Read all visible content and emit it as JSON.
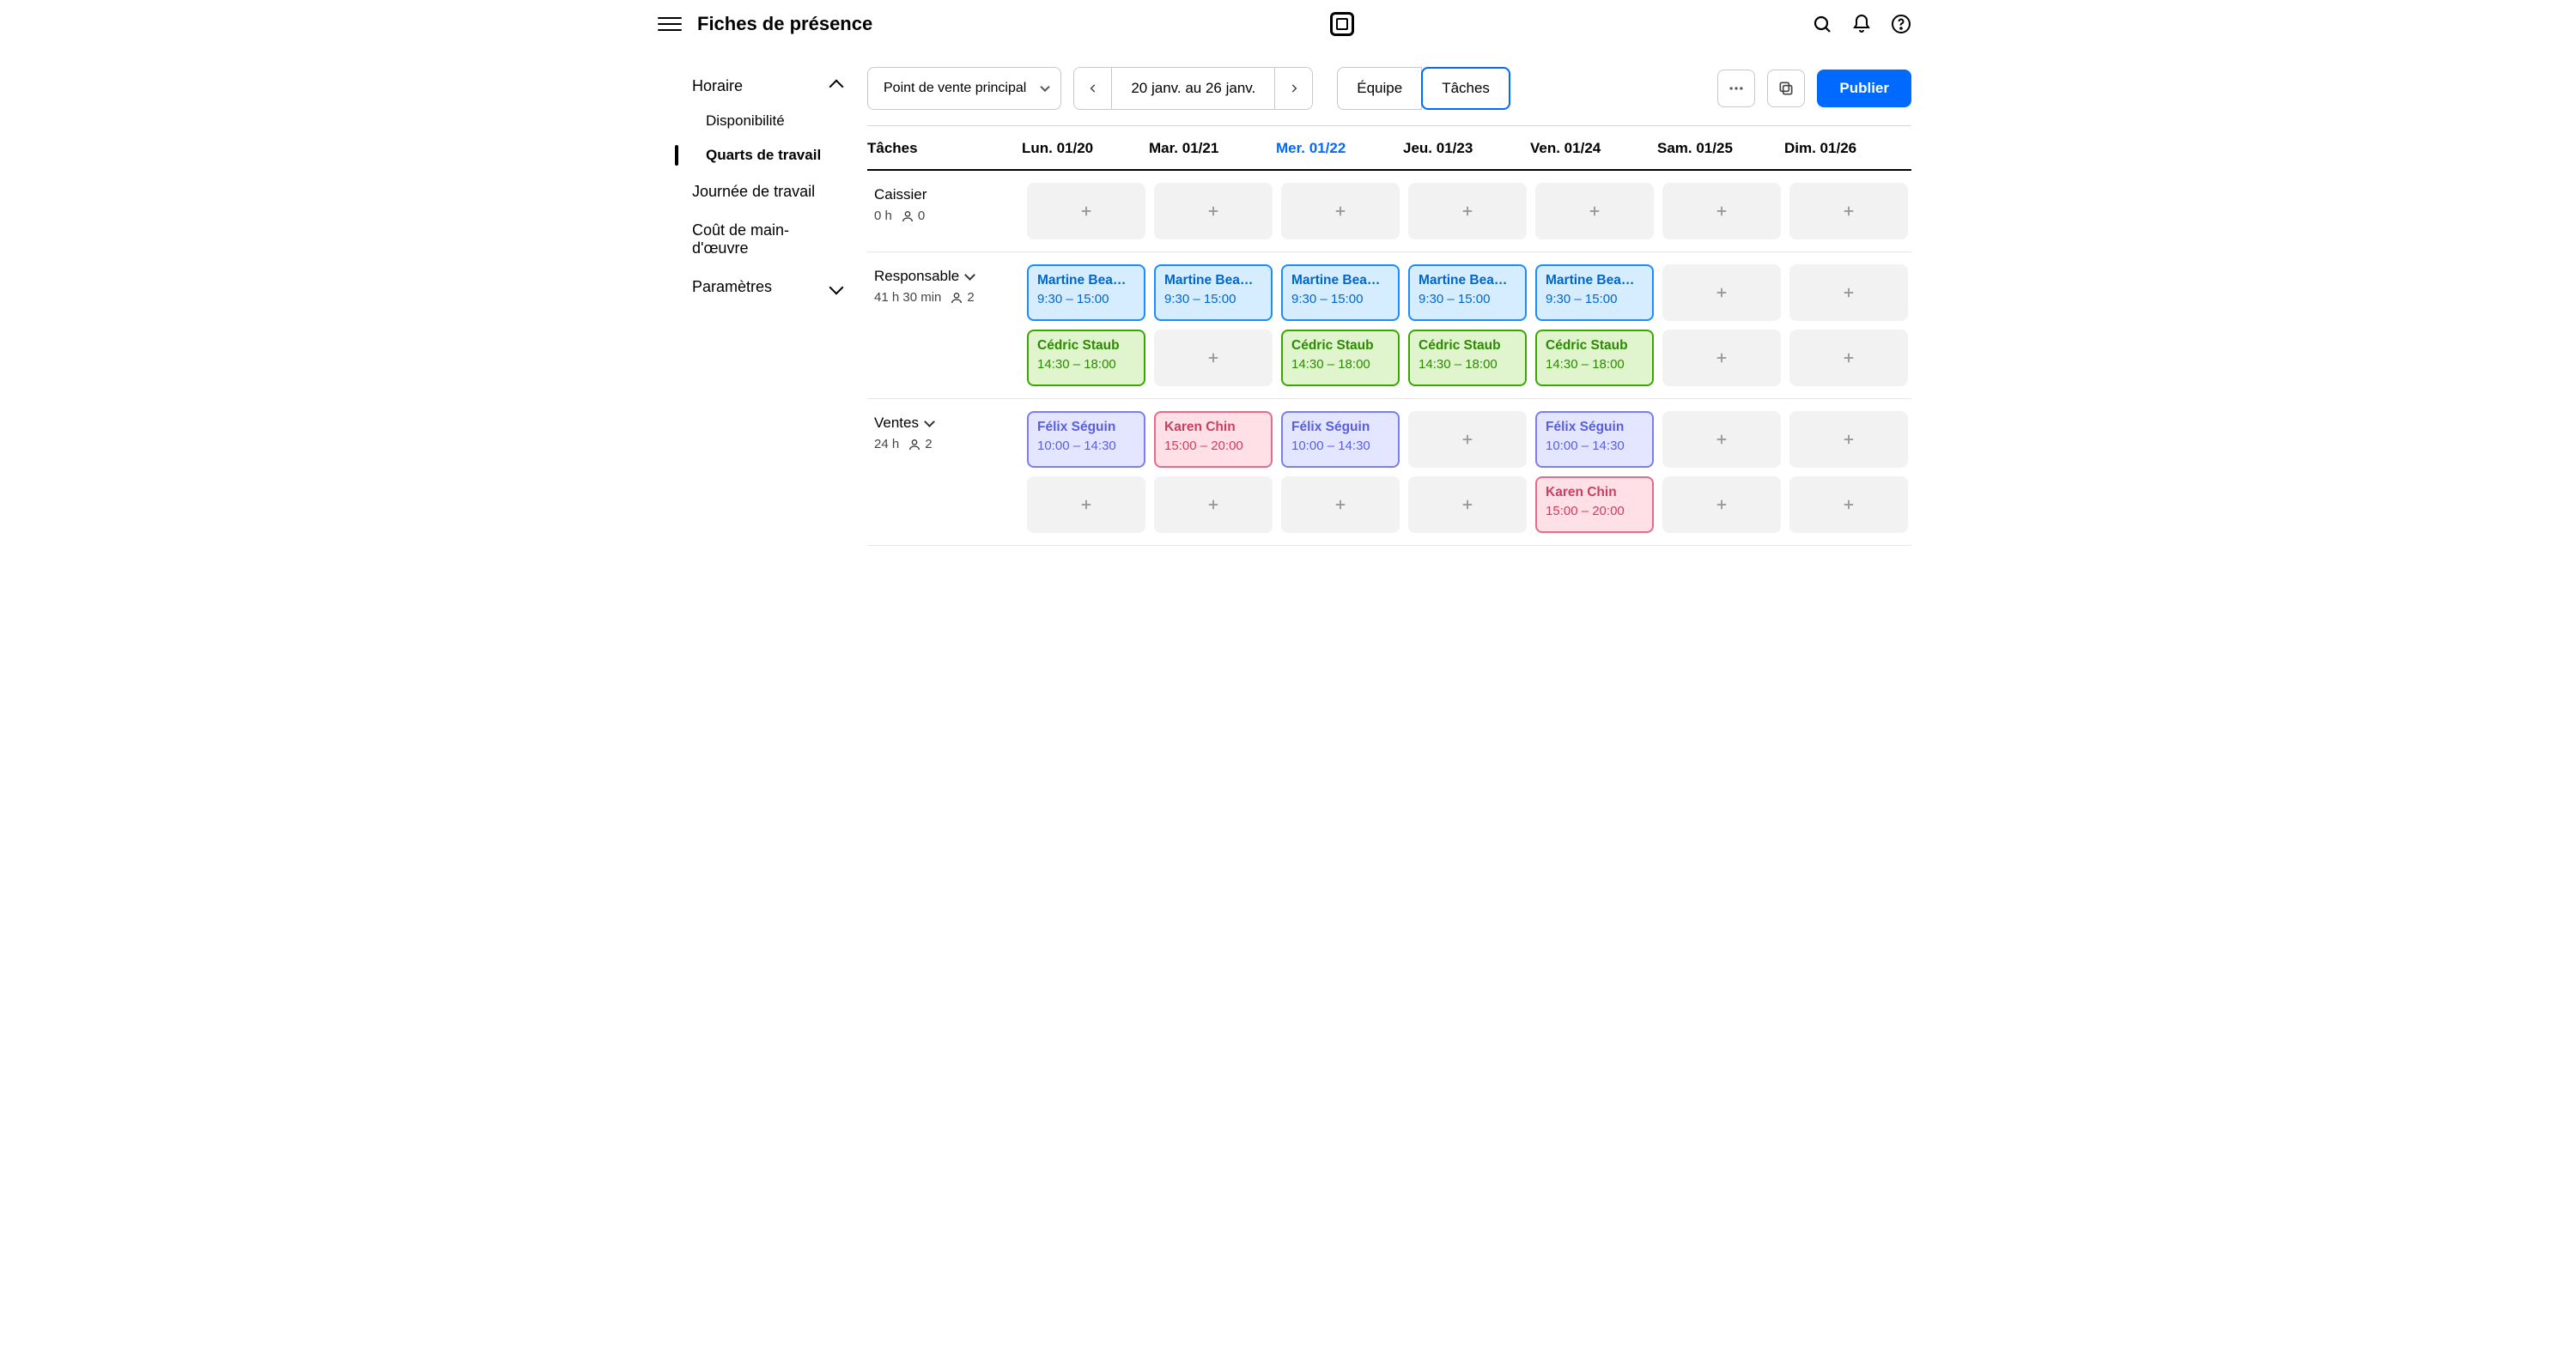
{
  "header": {
    "title": "Fiches de présence"
  },
  "sidebar": {
    "group_label": "Horaire",
    "items": {
      "availability": "Disponibilité",
      "shifts": "Quarts de travail",
      "workday": "Journée de travail",
      "labor_cost": "Coût de main-d'œuvre"
    },
    "settings_label": "Paramètres"
  },
  "toolbar": {
    "location_select": "Point de vente principal",
    "date_range": "20 janv. au 26 janv.",
    "view_team": "Équipe",
    "view_tasks": "Tâches",
    "publish": "Publier"
  },
  "columns": {
    "label": "Tâches",
    "days": [
      {
        "label": "Lun. 01/20",
        "today": false
      },
      {
        "label": "Mar. 01/21",
        "today": false
      },
      {
        "label": "Mer. 01/22",
        "today": true
      },
      {
        "label": "Jeu. 01/23",
        "today": false
      },
      {
        "label": "Ven. 01/24",
        "today": false
      },
      {
        "label": "Sam. 01/25",
        "today": false
      },
      {
        "label": "Dim. 01/26",
        "today": false
      }
    ]
  },
  "roles": [
    {
      "name": "Caissier",
      "collapsible": false,
      "hours": "0 h",
      "people": "0",
      "rows": [
        [
          null,
          null,
          null,
          null,
          null,
          null,
          null
        ]
      ]
    },
    {
      "name": "Responsable",
      "collapsible": true,
      "hours": "41 h 30 min",
      "people": "2",
      "rows": [
        [
          {
            "person": "Martine Bea…",
            "time": "9:30 – 15:00",
            "style": "blue"
          },
          {
            "person": "Martine Bea…",
            "time": "9:30 – 15:00",
            "style": "blue"
          },
          {
            "person": "Martine Bea…",
            "time": "9:30 – 15:00",
            "style": "blue"
          },
          {
            "person": "Martine Bea…",
            "time": "9:30 – 15:00",
            "style": "blue"
          },
          {
            "person": "Martine Bea…",
            "time": "9:30 – 15:00",
            "style": "blue"
          },
          null,
          null
        ],
        [
          {
            "person": "Cédric Staub",
            "time": "14:30 – 18:00",
            "style": "green"
          },
          null,
          {
            "person": "Cédric Staub",
            "time": "14:30 – 18:00",
            "style": "green"
          },
          {
            "person": "Cédric Staub",
            "time": "14:30 – 18:00",
            "style": "green"
          },
          {
            "person": "Cédric Staub",
            "time": "14:30 – 18:00",
            "style": "green"
          },
          null,
          null
        ]
      ]
    },
    {
      "name": "Ventes",
      "collapsible": true,
      "hours": "24 h",
      "people": "2",
      "rows": [
        [
          {
            "person": "Félix Séguin",
            "time": "10:00 – 14:30",
            "style": "purple"
          },
          {
            "person": "Karen Chin",
            "time": "15:00 – 20:00",
            "style": "pink"
          },
          {
            "person": "Félix Séguin",
            "time": "10:00 – 14:30",
            "style": "purple"
          },
          null,
          {
            "person": "Félix Séguin",
            "time": "10:00 – 14:30",
            "style": "purple"
          },
          null,
          null
        ],
        [
          null,
          null,
          null,
          null,
          {
            "person": "Karen Chin",
            "time": "15:00 – 20:00",
            "style": "pink"
          },
          null,
          null
        ]
      ]
    }
  ],
  "style": {
    "shift_palette": {
      "blue": {
        "bg": "#d6ecff",
        "border": "#1a8cff",
        "text": "#0066cc"
      },
      "green": {
        "bg": "#e0f5cd",
        "border": "#3aa700",
        "text": "#2a8a00"
      },
      "purple": {
        "bg": "#e4e6ff",
        "border": "#7a7ef0",
        "text": "#595ee0"
      },
      "pink": {
        "bg": "#ffe0e6",
        "border": "#e86a8a",
        "text": "#cc3e5f"
      }
    },
    "accent": "#006aff",
    "divider": "#e6e6e6",
    "placeholder_bg": "#f2f2f2",
    "placeholder_icon": "#999999"
  }
}
